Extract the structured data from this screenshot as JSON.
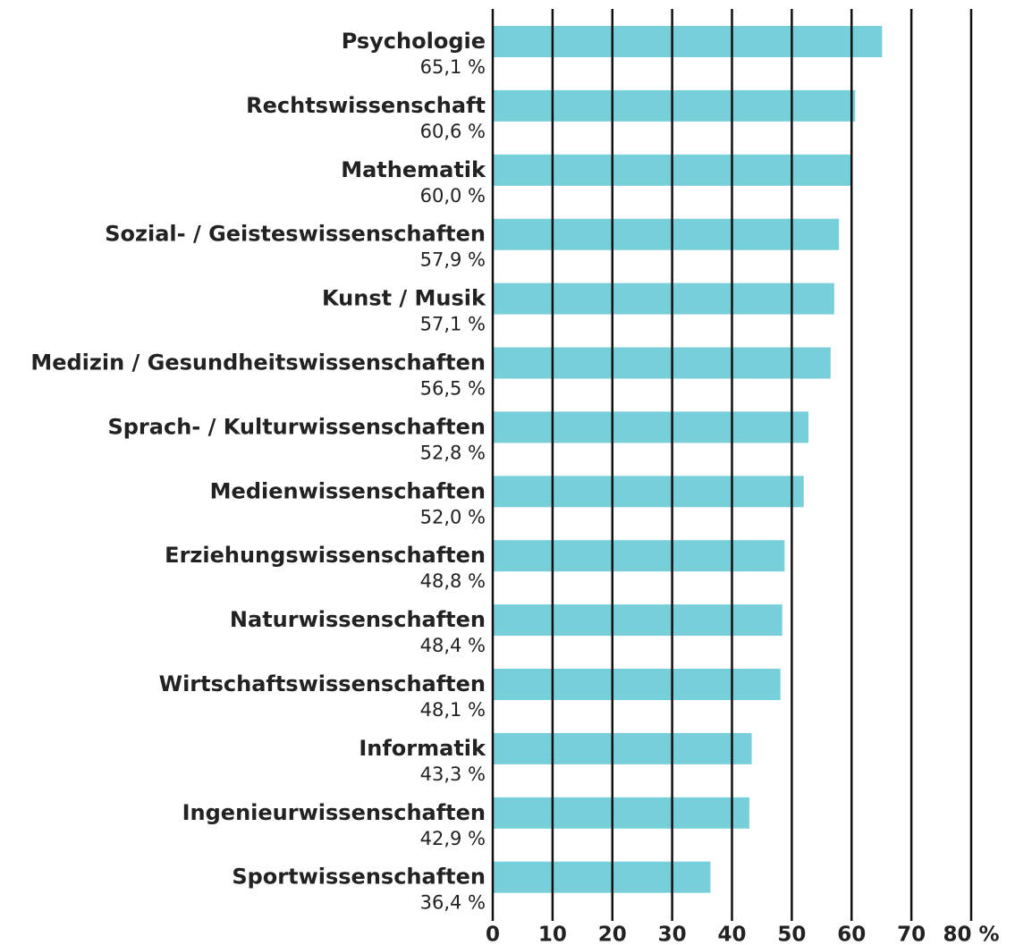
{
  "chart_data": {
    "type": "bar",
    "orientation": "horizontal",
    "categories": [
      "Psychologie",
      "Rechtswissenschaft",
      "Mathematik",
      "Sozial- / Geisteswissenschaften",
      "Kunst / Musik",
      "Medizin / Gesundheitswissenschaften",
      "Sprach- / Kulturwissenschaften",
      "Medienwissenschaften",
      "Erziehungswissenschaften",
      "Naturwissenschaften",
      "Wirtschaftswissenschaften",
      "Informatik",
      "Ingenieurwissenschaften",
      "Sportwissenschaften"
    ],
    "values": [
      65.1,
      60.6,
      60.0,
      57.9,
      57.1,
      56.5,
      52.8,
      52.0,
      48.8,
      48.4,
      48.1,
      43.3,
      42.9,
      36.4
    ],
    "value_labels": [
      "65,1 %",
      "60,6 %",
      "60,0 %",
      "57,9 %",
      "57,1 %",
      "56,5 %",
      "52,8 %",
      "52,0 %",
      "48,8 %",
      "48,4 %",
      "48,1 %",
      "43,3 %",
      "42,9 %",
      "36,4 %"
    ],
    "color": "#76cfd9",
    "xlim": [
      0,
      80
    ],
    "xticks": [
      0,
      10,
      20,
      30,
      40,
      50,
      60,
      70,
      {
        "value": 80,
        "label": "80 %"
      }
    ],
    "grid": true
  }
}
